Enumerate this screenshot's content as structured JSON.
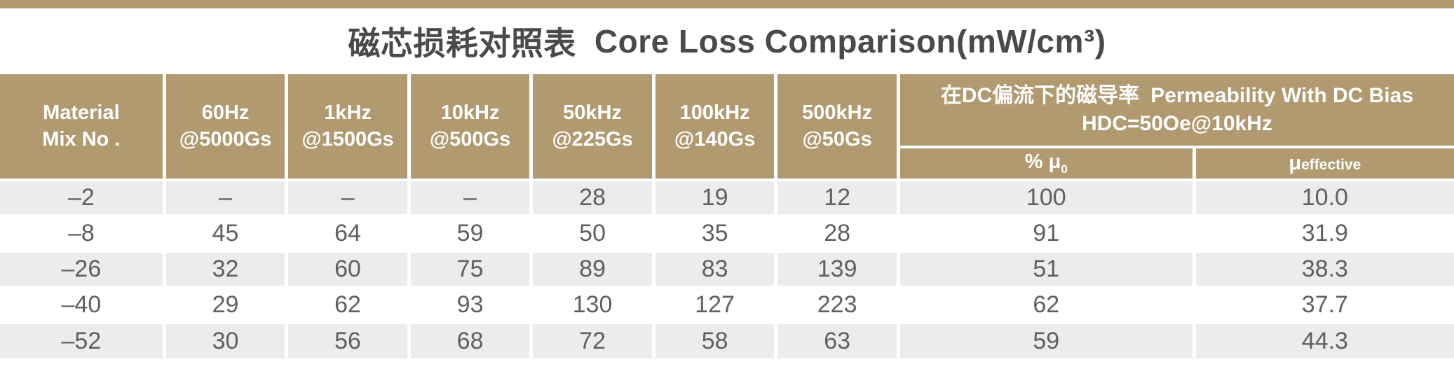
{
  "title": {
    "cn": "磁芯损耗对照表",
    "en": "Core Loss Comparison(mW/cm³)"
  },
  "colors": {
    "header_bg": "#b19970",
    "top_bar": "#b19970",
    "row_alt_bg": "#ececec",
    "row_bg": "#ffffff",
    "header_text": "#ffffff",
    "data_text": "#606062",
    "title_text": "#4a4a4c"
  },
  "table": {
    "headers": [
      {
        "line1": "Material",
        "line2": "Mix No ."
      },
      {
        "line1": "60Hz",
        "line2": "@5000Gs"
      },
      {
        "line1": "1kHz",
        "line2": "@1500Gs"
      },
      {
        "line1": "10kHz",
        "line2": "@500Gs"
      },
      {
        "line1": "50kHz",
        "line2": "@225Gs"
      },
      {
        "line1": "100kHz",
        "line2": "@140Gs"
      },
      {
        "line1": "500kHz",
        "line2": "@50Gs"
      }
    ],
    "dc_bias_header": {
      "line1_cn": "在DC偏流下的磁导率",
      "line1_en": "Permeability With DC Bias",
      "line2": "HDC=50Oe@10kHz"
    },
    "subheaders": {
      "percent_mu": {
        "main": "% μ",
        "sub": "0"
      },
      "mu_effective": {
        "symbol": "μ",
        "label": "effective"
      }
    },
    "rows": [
      [
        "–2",
        "–",
        "–",
        "–",
        "28",
        "19",
        "12",
        "100",
        "10.0"
      ],
      [
        "–8",
        "45",
        "64",
        "59",
        "50",
        "35",
        "28",
        "91",
        "31.9"
      ],
      [
        "–26",
        "32",
        "60",
        "75",
        "89",
        "83",
        "139",
        "51",
        "38.3"
      ],
      [
        "–40",
        "29",
        "62",
        "93",
        "130",
        "127",
        "223",
        "62",
        "37.7"
      ],
      [
        "–52",
        "30",
        "56",
        "68",
        "72",
        "58",
        "63",
        "59",
        "44.3"
      ]
    ]
  },
  "chart_data": {
    "type": "table",
    "title": "磁芯损耗对照表 Core Loss Comparison(mW/cm³)",
    "columns": [
      "Material Mix No.",
      "60Hz @5000Gs",
      "1kHz @1500Gs",
      "10kHz @500Gs",
      "50kHz @225Gs",
      "100kHz @140Gs",
      "500kHz @50Gs",
      "% μ0 — Permeability With DC Bias HDC=50Oe@10kHz",
      "μ effective — Permeability With DC Bias HDC=50Oe@10kHz"
    ],
    "rows": [
      [
        "-2",
        null,
        null,
        null,
        28,
        19,
        12,
        100,
        10.0
      ],
      [
        "-8",
        45,
        64,
        59,
        50,
        35,
        28,
        91,
        31.9
      ],
      [
        "-26",
        32,
        60,
        75,
        89,
        83,
        139,
        51,
        38.3
      ],
      [
        "-40",
        29,
        62,
        93,
        130,
        127,
        223,
        62,
        37.7
      ],
      [
        "-52",
        30,
        56,
        68,
        72,
        58,
        63,
        59,
        44.3
      ]
    ]
  }
}
